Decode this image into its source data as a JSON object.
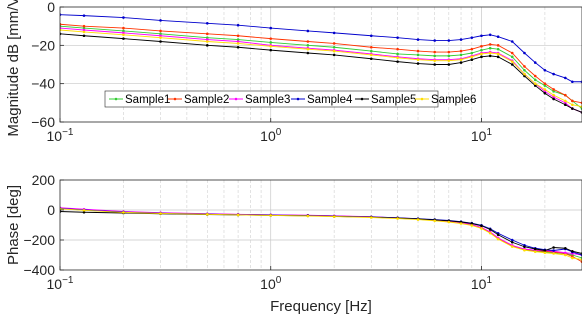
{
  "chart_data": [
    {
      "type": "line",
      "name": "magnitude",
      "xscale": "log",
      "xlim": [
        0.1,
        30
      ],
      "ylim": [
        -60,
        0
      ],
      "ylabel": "Magnitude dB [mm/V]",
      "xlabel": "",
      "grid": true,
      "x_ticks": [
        {
          "value": 0.1,
          "base": "10",
          "exp": "-1"
        },
        {
          "value": 1,
          "base": "10",
          "exp": "0"
        },
        {
          "value": 10,
          "base": "10",
          "exp": "1"
        }
      ],
      "y_ticks": [
        0,
        -20,
        -40,
        -60
      ],
      "legend": "inside-bottom-left",
      "x": [
        0.1,
        0.13,
        0.2,
        0.3,
        0.5,
        0.7,
        1,
        1.5,
        2,
        3,
        4,
        5,
        6,
        7,
        8,
        9,
        10,
        11,
        12,
        14,
        16,
        18,
        20,
        22,
        25,
        27,
        30
      ],
      "series": [
        {
          "name": "Sample1",
          "color": "#33cc33",
          "values": [
            -10,
            -11,
            -12.5,
            -14,
            -16,
            -17,
            -18.5,
            -20,
            -21,
            -23,
            -24.5,
            -25,
            -25.5,
            -25.5,
            -25,
            -24,
            -22.5,
            -21.5,
            -22,
            -26,
            -33,
            -38,
            -41,
            -44,
            -46,
            -49,
            -53
          ]
        },
        {
          "name": "Sample2",
          "color": "#ff3300",
          "values": [
            -9,
            -10,
            -11,
            -12.5,
            -14,
            -15,
            -16.5,
            -18,
            -19,
            -21,
            -22,
            -23,
            -23.5,
            -23.5,
            -23,
            -22,
            -20.5,
            -19.5,
            -20,
            -24,
            -31,
            -36,
            -40,
            -43,
            -46,
            -49,
            -50
          ]
        },
        {
          "name": "Sample3",
          "color": "#ff00ff",
          "values": [
            -11,
            -12,
            -13.5,
            -15,
            -17,
            -18,
            -20,
            -21.5,
            -22.5,
            -24.5,
            -26,
            -27,
            -27.5,
            -27.5,
            -27,
            -25.5,
            -24,
            -23.5,
            -24,
            -28,
            -35,
            -40,
            -44,
            -47,
            -50,
            -53,
            -55
          ]
        },
        {
          "name": "Sample4",
          "color": "#0000cc",
          "values": [
            -4,
            -4.5,
            -5.5,
            -7,
            -8.5,
            -9.5,
            -11,
            -12.5,
            -13.5,
            -15,
            -16,
            -17,
            -17.5,
            -17.5,
            -17,
            -16,
            -15,
            -14.5,
            -15.5,
            -18,
            -24,
            -29,
            -33,
            -35,
            -37,
            -39,
            -39
          ]
        },
        {
          "name": "Sample5",
          "color": "#000000",
          "values": [
            -14,
            -15,
            -16.5,
            -18,
            -20,
            -21,
            -22.5,
            -24,
            -25,
            -27,
            -28.5,
            -29.5,
            -30,
            -30,
            -29,
            -27.5,
            -26,
            -25.5,
            -26,
            -30,
            -36,
            -41,
            -45,
            -48,
            -51,
            -53,
            -55
          ]
        },
        {
          "name": "Sample6",
          "color": "#ffdd00",
          "values": [
            -12,
            -13,
            -14.5,
            -16,
            -18,
            -19,
            -20.5,
            -22,
            -23,
            -25,
            -26.5,
            -27.5,
            -28,
            -28,
            -27.5,
            -26,
            -24.5,
            -24,
            -24.5,
            -28.5,
            -35,
            -40,
            -43,
            -46,
            -49,
            -51,
            -52
          ]
        }
      ]
    },
    {
      "type": "line",
      "name": "phase",
      "xscale": "log",
      "xlim": [
        0.1,
        30
      ],
      "ylim": [
        -400,
        200
      ],
      "ylabel": "Phase [deg]",
      "xlabel": "Frequency [Hz]",
      "grid": true,
      "x_ticks": [
        {
          "value": 0.1,
          "base": "10",
          "exp": "-1"
        },
        {
          "value": 1,
          "base": "10",
          "exp": "0"
        },
        {
          "value": 10,
          "base": "10",
          "exp": "1"
        }
      ],
      "y_ticks": [
        200,
        0,
        -200,
        -400
      ],
      "x": [
        0.1,
        0.13,
        0.2,
        0.3,
        0.5,
        0.7,
        1,
        1.5,
        2,
        3,
        4,
        5,
        6,
        7,
        8,
        9,
        10,
        11,
        12,
        14,
        16,
        18,
        20,
        22,
        25,
        27,
        30
      ],
      "series": [
        {
          "name": "Sample1",
          "color": "#33cc33",
          "values": [
            10,
            0,
            -15,
            -22,
            -28,
            -32,
            -35,
            -38,
            -42,
            -48,
            -55,
            -62,
            -70,
            -78,
            -88,
            -100,
            -120,
            -150,
            -190,
            -240,
            -265,
            -275,
            -280,
            -285,
            -290,
            -300,
            -320
          ]
        },
        {
          "name": "Sample2",
          "color": "#ff3300",
          "values": [
            12,
            2,
            -13,
            -20,
            -26,
            -30,
            -33,
            -36,
            -40,
            -46,
            -53,
            -60,
            -68,
            -76,
            -86,
            -98,
            -118,
            -148,
            -188,
            -238,
            -262,
            -270,
            -275,
            -280,
            -290,
            -310,
            -345
          ]
        },
        {
          "name": "Sample3",
          "color": "#ff00ff",
          "values": [
            15,
            5,
            -10,
            -18,
            -25,
            -29,
            -32,
            -35,
            -39,
            -45,
            -52,
            -59,
            -67,
            -75,
            -85,
            -97,
            -116,
            -146,
            -186,
            -236,
            -260,
            -268,
            -270,
            -275,
            -285,
            -290,
            -300
          ]
        },
        {
          "name": "Sample4",
          "color": "#0000cc",
          "values": [
            10,
            0,
            -14,
            -21,
            -27,
            -31,
            -34,
            -37,
            -41,
            -46,
            -52,
            -58,
            -64,
            -70,
            -78,
            -88,
            -102,
            -125,
            -155,
            -200,
            -235,
            -255,
            -265,
            -270,
            -260,
            -280,
            -300
          ]
        },
        {
          "name": "Sample5",
          "color": "#000000",
          "values": [
            -10,
            -15,
            -20,
            -25,
            -30,
            -33,
            -36,
            -39,
            -43,
            -48,
            -54,
            -60,
            -66,
            -72,
            -80,
            -90,
            -105,
            -130,
            -165,
            -215,
            -245,
            -260,
            -270,
            -250,
            -255,
            -275,
            -290
          ]
        },
        {
          "name": "Sample6",
          "color": "#ffdd00",
          "values": [
            8,
            -2,
            -16,
            -23,
            -29,
            -33,
            -36,
            -40,
            -44,
            -50,
            -57,
            -64,
            -72,
            -80,
            -90,
            -103,
            -123,
            -154,
            -194,
            -244,
            -268,
            -278,
            -285,
            -290,
            -300,
            -320,
            -330
          ]
        }
      ]
    }
  ]
}
